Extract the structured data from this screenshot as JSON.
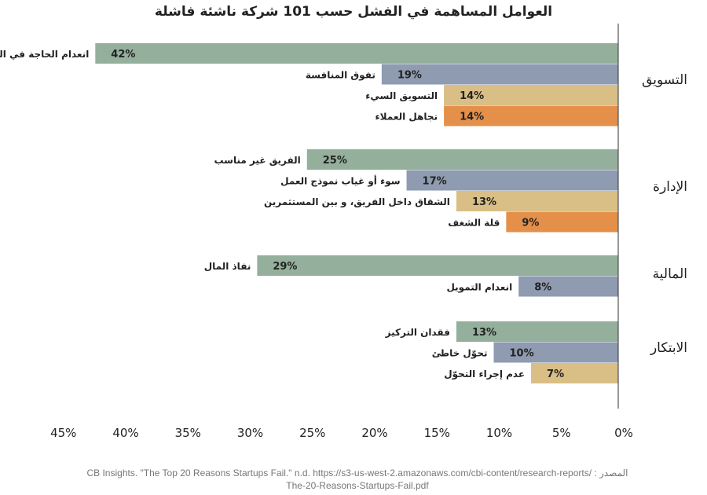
{
  "chart_data": {
    "type": "bar",
    "orientation": "horizontal",
    "title": "العوامل المساهمة في الفشل حسب 101 شركة ناشئة فاشلة",
    "xlabel": "",
    "ylabel": "",
    "xlim": [
      0,
      45
    ],
    "x_ticks": [
      "0%",
      "5%",
      "10%",
      "15%",
      "20%",
      "25%",
      "30%",
      "35%",
      "40%",
      "45%"
    ],
    "x_direction": "reversed",
    "grid": false,
    "colors": [
      "#94b09c",
      "#8e9bb0",
      "#d9be85",
      "#e5904a"
    ],
    "groups": [
      {
        "name": "التسويق",
        "items": [
          {
            "label": "انعدام الحاجة في السوق",
            "value": 42
          },
          {
            "label": "تفوق المنافسة",
            "value": 19
          },
          {
            "label": "التسويق السيء",
            "value": 14
          },
          {
            "label": "تجاهل العملاء",
            "value": 14
          }
        ]
      },
      {
        "name": "الإدارة",
        "items": [
          {
            "label": "الفريق غير مناسب",
            "value": 25
          },
          {
            "label": "سوء أو غياب نموذج العمل",
            "value": 17
          },
          {
            "label": "الشقاق داخل الفريق، و بين المستثمرين",
            "value": 13
          },
          {
            "label": "قلة الشغف",
            "value": 9
          }
        ]
      },
      {
        "name": "المالية",
        "items": [
          {
            "label": "نفاذ المال",
            "value": 29
          },
          {
            "label": "انعدام التمويل",
            "value": 8
          }
        ]
      },
      {
        "name": "الابتكار",
        "items": [
          {
            "label": "فقدان التركيز",
            "value": 13
          },
          {
            "label": "تحوّل خاطئ",
            "value": 10
          },
          {
            "label": "عدم إجراء التحوّل",
            "value": 7
          }
        ]
      }
    ]
  },
  "source": {
    "label": "المصدر :",
    "line1": "CB Insights. \"The Top 20 Reasons Startups Fail.\" n.d. https://s3-us-west-2.amazonaws.com/cbi-content/research-reports/",
    "line2": "The-20-Reasons-Startups-Fail.pdf"
  }
}
